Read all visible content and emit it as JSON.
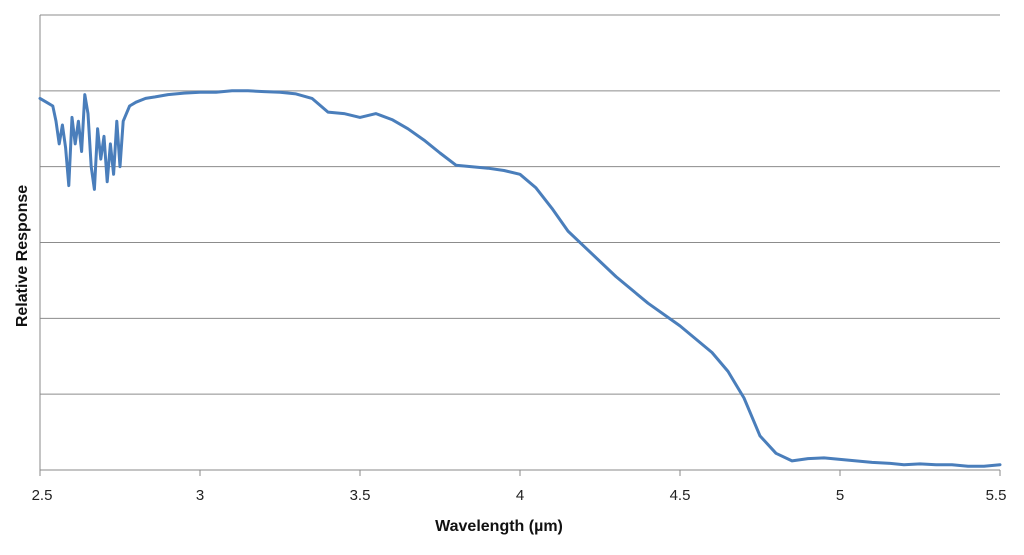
{
  "chart_data": {
    "type": "line",
    "title": "",
    "xlabel": "Wavelength (µm)",
    "ylabel": "Relative Response",
    "xlim": [
      2.5,
      5.5
    ],
    "ylim": [
      0,
      6
    ],
    "x_ticks": [
      2.5,
      3,
      3.5,
      4,
      4.5,
      5,
      5.5
    ],
    "x_tick_labels": [
      "2.5",
      "3",
      "3.5",
      "4",
      "4.5",
      "5",
      "5.5"
    ],
    "y_gridlines": [
      0,
      1,
      2,
      3,
      4,
      5,
      6
    ],
    "y_tick_labels_visible": false,
    "grid": "horizontal",
    "legend": "none",
    "line_color": "#4A7EBB",
    "series": [
      {
        "x": [
          2.5,
          2.52,
          2.54,
          2.55,
          2.56,
          2.57,
          2.58,
          2.59,
          2.6,
          2.61,
          2.62,
          2.63,
          2.64,
          2.65,
          2.66,
          2.67,
          2.68,
          2.69,
          2.7,
          2.71,
          2.72,
          2.73,
          2.74,
          2.75,
          2.76,
          2.78,
          2.8,
          2.83,
          2.86,
          2.9,
          2.95,
          3.0,
          3.05,
          3.1,
          3.15,
          3.2,
          3.25,
          3.3,
          3.35,
          3.4,
          3.45,
          3.5,
          3.55,
          3.6,
          3.65,
          3.7,
          3.75,
          3.8,
          3.85,
          3.9,
          3.95,
          4.0,
          4.05,
          4.1,
          4.15,
          4.2,
          4.3,
          4.4,
          4.5,
          4.6,
          4.65,
          4.7,
          4.75,
          4.8,
          4.85,
          4.9,
          4.95,
          5.0,
          5.05,
          5.1,
          5.15,
          5.2,
          5.25,
          5.3,
          5.35,
          5.4,
          5.45,
          5.5
        ],
        "y": [
          4.9,
          4.85,
          4.8,
          4.6,
          4.3,
          4.55,
          4.25,
          3.75,
          4.65,
          4.3,
          4.6,
          4.2,
          4.95,
          4.7,
          4.0,
          3.7,
          4.5,
          4.1,
          4.4,
          3.8,
          4.3,
          3.9,
          4.6,
          4.0,
          4.6,
          4.8,
          4.85,
          4.9,
          4.92,
          4.95,
          4.97,
          4.98,
          4.98,
          5.0,
          5.0,
          4.99,
          4.98,
          4.96,
          4.9,
          4.72,
          4.7,
          4.65,
          4.7,
          4.62,
          4.5,
          4.35,
          4.18,
          4.02,
          4.0,
          3.98,
          3.95,
          3.9,
          3.72,
          3.45,
          3.15,
          2.95,
          2.55,
          2.2,
          1.9,
          1.55,
          1.3,
          0.95,
          0.45,
          0.22,
          0.12,
          0.15,
          0.16,
          0.14,
          0.12,
          0.1,
          0.09,
          0.07,
          0.08,
          0.07,
          0.07,
          0.05,
          0.05,
          0.07
        ]
      }
    ]
  }
}
